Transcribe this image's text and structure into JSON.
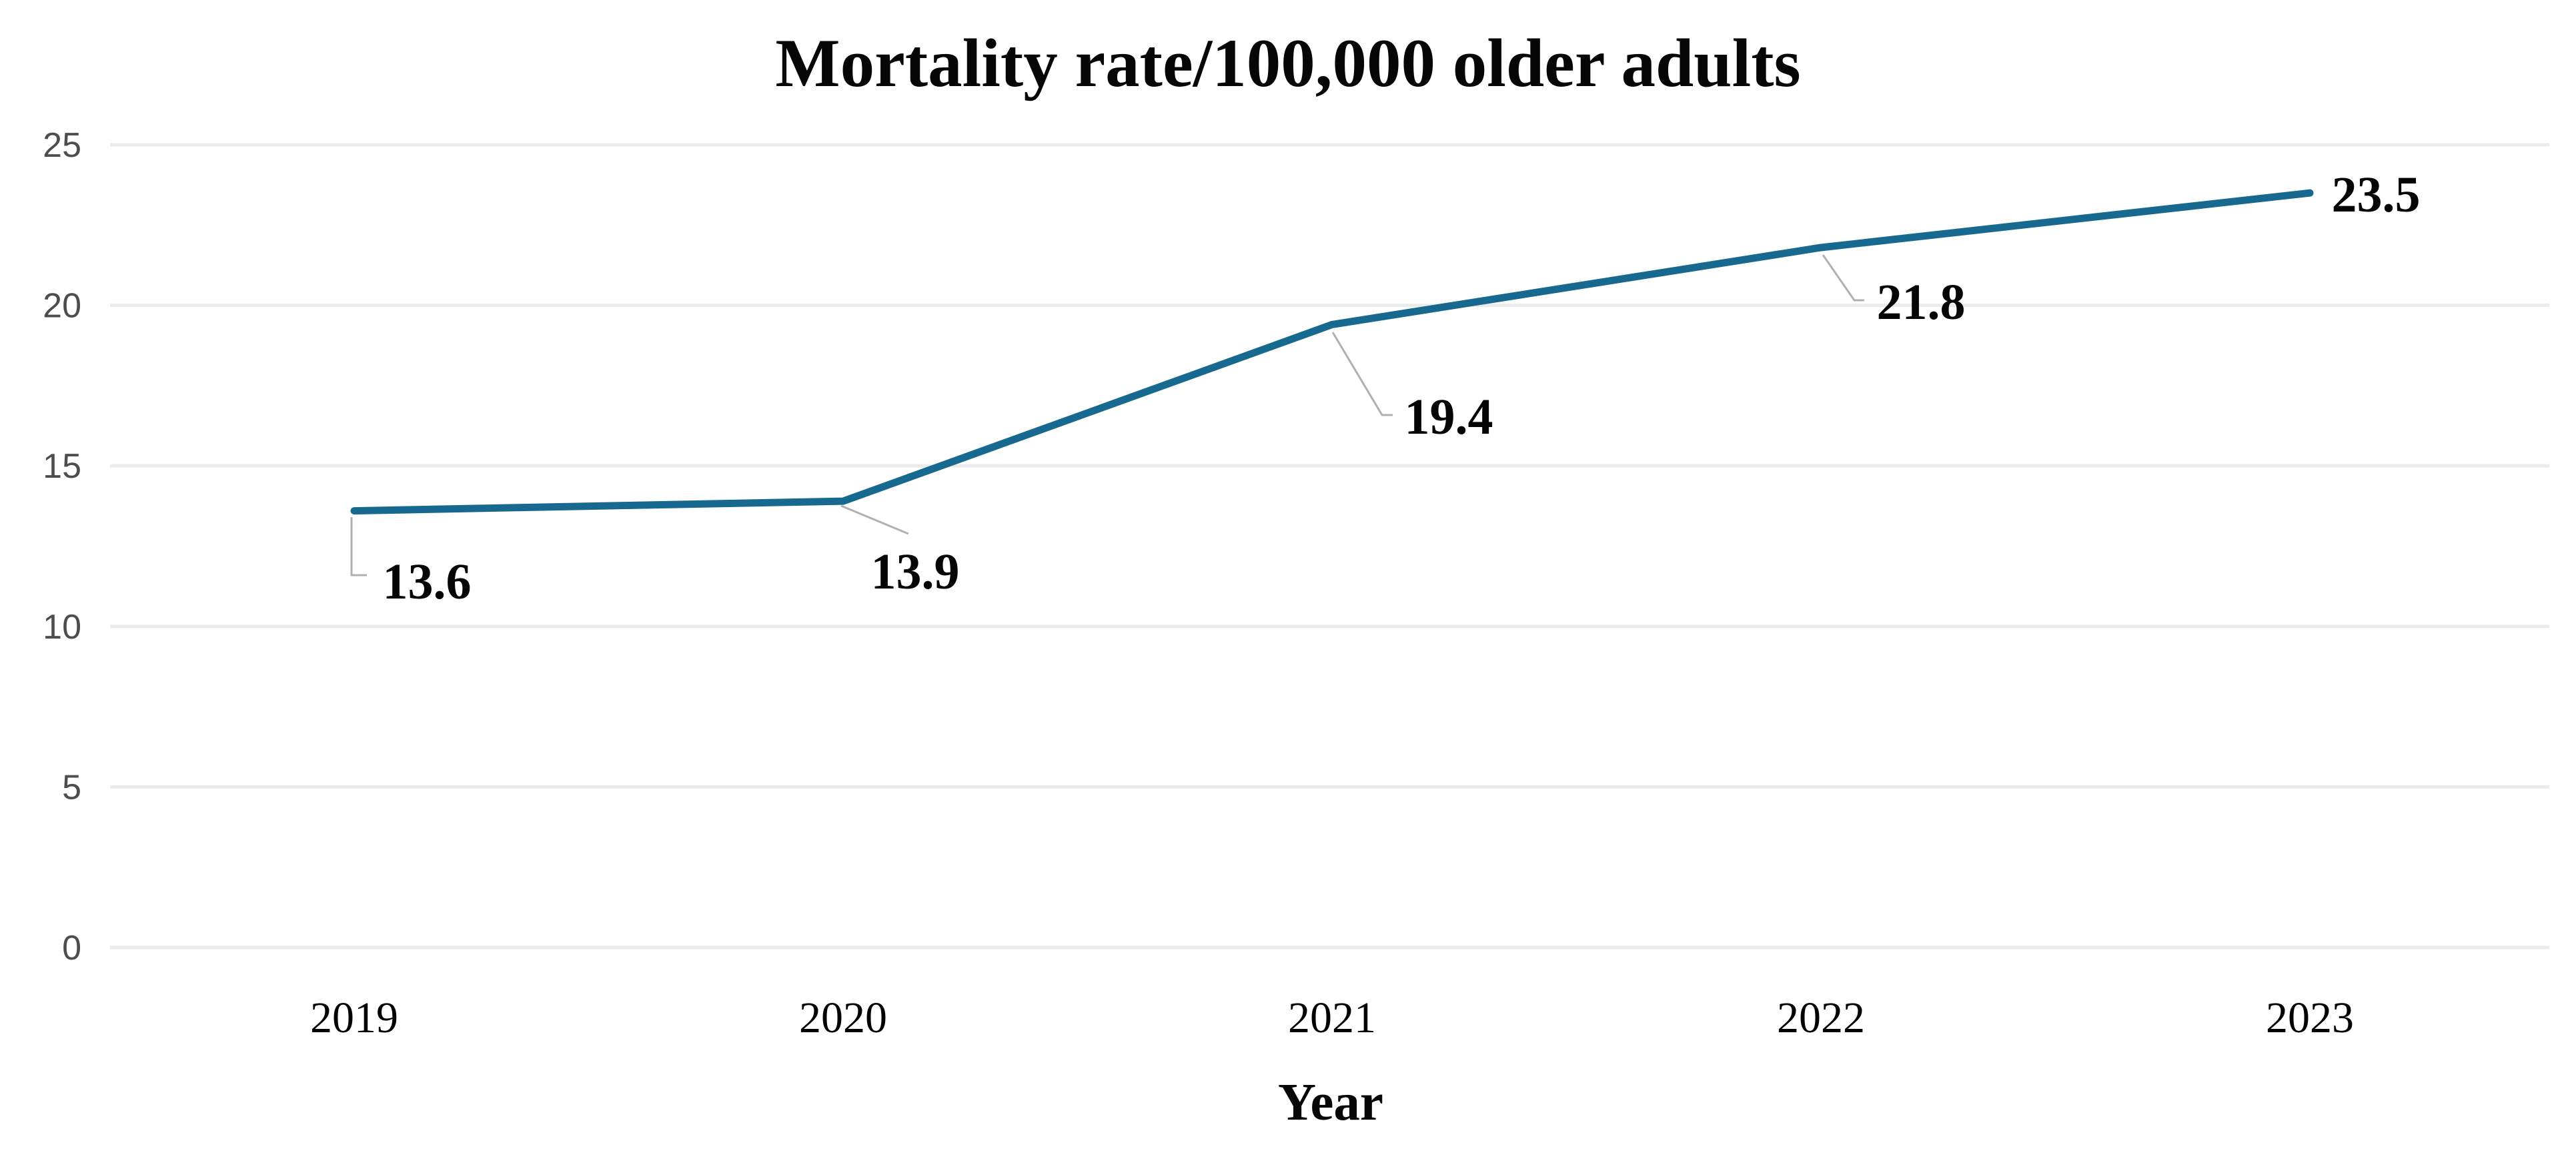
{
  "chart_data": {
    "type": "line",
    "title": "Mortality rate/100,000 older adults",
    "xlabel": "Year",
    "ylabel": "",
    "categories": [
      "2019",
      "2020",
      "2021",
      "2022",
      "2023"
    ],
    "values": [
      13.6,
      13.9,
      19.4,
      21.8,
      23.5
    ],
    "point_labels": [
      "13.6",
      "13.9",
      "19.4",
      "21.8",
      "23.5"
    ],
    "ylim": [
      0,
      25
    ],
    "yticks": [
      0,
      5,
      10,
      15,
      20,
      25
    ],
    "grid": "horizontal-only",
    "legend": "none",
    "line_color": "#17698f",
    "leader_color": "#b0b0b0",
    "gridline_color": "#ebebeb",
    "tick_label_color": "#4d4d4d",
    "text_color": "#060606",
    "background_color": "#ffffff"
  }
}
